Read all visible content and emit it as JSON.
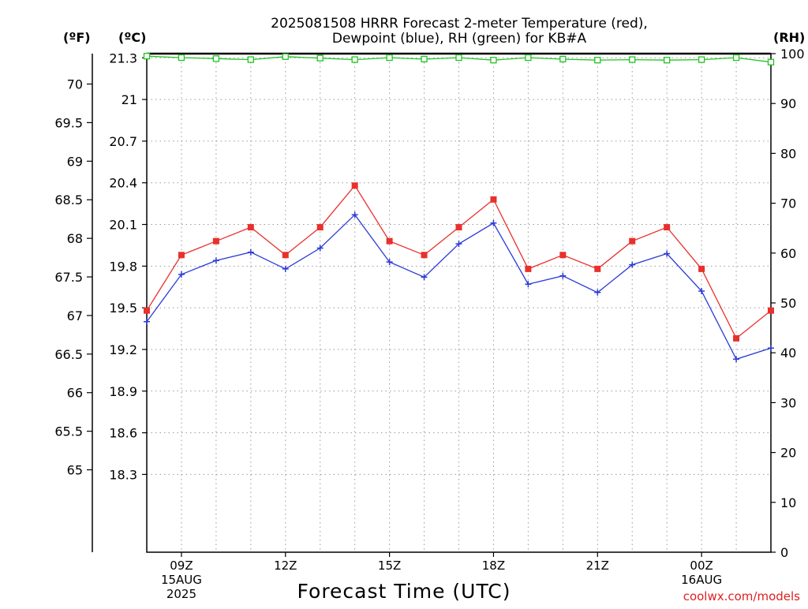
{
  "chart_data": {
    "type": "line",
    "title_line1": "2025081508 HRRR Forecast 2-meter Temperature (red),",
    "title_line2": "Dewpoint (blue), RH (green) for KB#A",
    "axis_heads": {
      "fahrenheit": "(ºF)",
      "celsius": "(ºC)",
      "rh": "(RH)"
    },
    "xlabel": "Forecast Time (UTC)",
    "credit": "coolwx.com/models",
    "x_hours": [
      8,
      9,
      10,
      11,
      12,
      13,
      14,
      15,
      16,
      17,
      18,
      19,
      20,
      21,
      22,
      23,
      24,
      25,
      26
    ],
    "x_ticks": [
      {
        "hour": 9,
        "lines": [
          "09Z",
          "15AUG",
          "2025"
        ]
      },
      {
        "hour": 12,
        "lines": [
          "12Z"
        ]
      },
      {
        "hour": 15,
        "lines": [
          "15Z"
        ]
      },
      {
        "hour": 18,
        "lines": [
          "18Z"
        ]
      },
      {
        "hour": 21,
        "lines": [
          "21Z"
        ]
      },
      {
        "hour": 24,
        "lines": [
          "00Z",
          "16AUG"
        ]
      }
    ],
    "celsius_axis": {
      "ylim": [
        17.74,
        21.33
      ],
      "ticks": [
        "18.3",
        "18.6",
        "18.9",
        "19.2",
        "19.5",
        "19.8",
        "20.1",
        "20.4",
        "20.7",
        "21",
        "21.3"
      ]
    },
    "fahrenheit_axis": {
      "ticks": [
        "65",
        "65.5",
        "66",
        "66.5",
        "67",
        "67.5",
        "68",
        "68.5",
        "69",
        "69.5",
        "70"
      ]
    },
    "rh_axis": {
      "ylim": [
        0,
        100
      ],
      "ticks": [
        "0",
        "10",
        "20",
        "30",
        "40",
        "50",
        "60",
        "70",
        "80",
        "90",
        "100"
      ]
    },
    "series": [
      {
        "name": "Temperature (red)",
        "axis": "celsius",
        "color": "#e8302c",
        "marker": "square",
        "values": [
          19.48,
          19.88,
          19.98,
          20.08,
          19.88,
          20.08,
          20.38,
          19.98,
          19.88,
          20.08,
          20.28,
          19.78,
          19.88,
          19.78,
          19.98,
          20.08,
          19.78,
          19.28,
          19.48
        ]
      },
      {
        "name": "Dewpoint (blue)",
        "axis": "celsius",
        "color": "#2b3bd6",
        "marker": "plus",
        "values": [
          19.4,
          19.74,
          19.84,
          19.9,
          19.78,
          19.93,
          20.17,
          19.83,
          19.72,
          19.96,
          20.11,
          19.67,
          19.73,
          19.61,
          19.81,
          19.89,
          19.62,
          19.13,
          19.21
        ]
      },
      {
        "name": "RH (green)",
        "axis": "rh",
        "color": "#22c322",
        "marker": "square-open",
        "values": [
          99.5,
          99.2,
          99.0,
          98.8,
          99.4,
          99.1,
          98.8,
          99.2,
          98.9,
          99.2,
          98.7,
          99.2,
          98.9,
          98.7,
          98.8,
          98.7,
          98.8,
          99.2,
          98.3
        ]
      }
    ]
  }
}
